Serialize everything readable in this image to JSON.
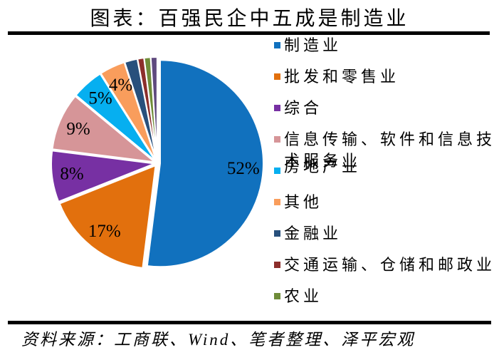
{
  "header": {
    "title": "图表：百强民企中五成是制造业"
  },
  "chart_data": {
    "type": "pie",
    "title": "图表：百强民企中五成是制造业",
    "unit": "%",
    "direction": "clockwise",
    "start_angle_deg": 0,
    "legend_position": "right",
    "series": [
      {
        "label": "制造业",
        "value": 52,
        "data_label": "52%",
        "color": "#1171BE"
      },
      {
        "label": "批发和零售业",
        "value": 17,
        "data_label": "17%",
        "color": "#E2700D"
      },
      {
        "label": "综合",
        "value": 8,
        "data_label": "8%",
        "color": "#7730A3"
      },
      {
        "label": "信息传输、软件和信息技术服务业",
        "value": 9,
        "data_label": "9%",
        "color": "#D69598"
      },
      {
        "label": "房地产业",
        "value": 5,
        "data_label": "5%",
        "color": "#06AFF0"
      },
      {
        "label": "其他",
        "value": 4,
        "data_label": "4%",
        "color": "#F99D5C"
      },
      {
        "label": "金融业",
        "value": 2,
        "data_label": "",
        "color": "#28507C"
      },
      {
        "label": "交通运输、仓储和邮政业",
        "value": 1,
        "data_label": "",
        "color": "#8C2E2B"
      },
      {
        "label": "农业",
        "value": 1,
        "data_label": "",
        "color": "#6F8C39"
      },
      {
        "label": "",
        "value": 1,
        "data_label": "",
        "color": "#5F4A7E",
        "in_legend": false
      }
    ]
  },
  "footer": {
    "source": "资料来源：工商联、Wind、笔者整理、泽平宏观"
  }
}
